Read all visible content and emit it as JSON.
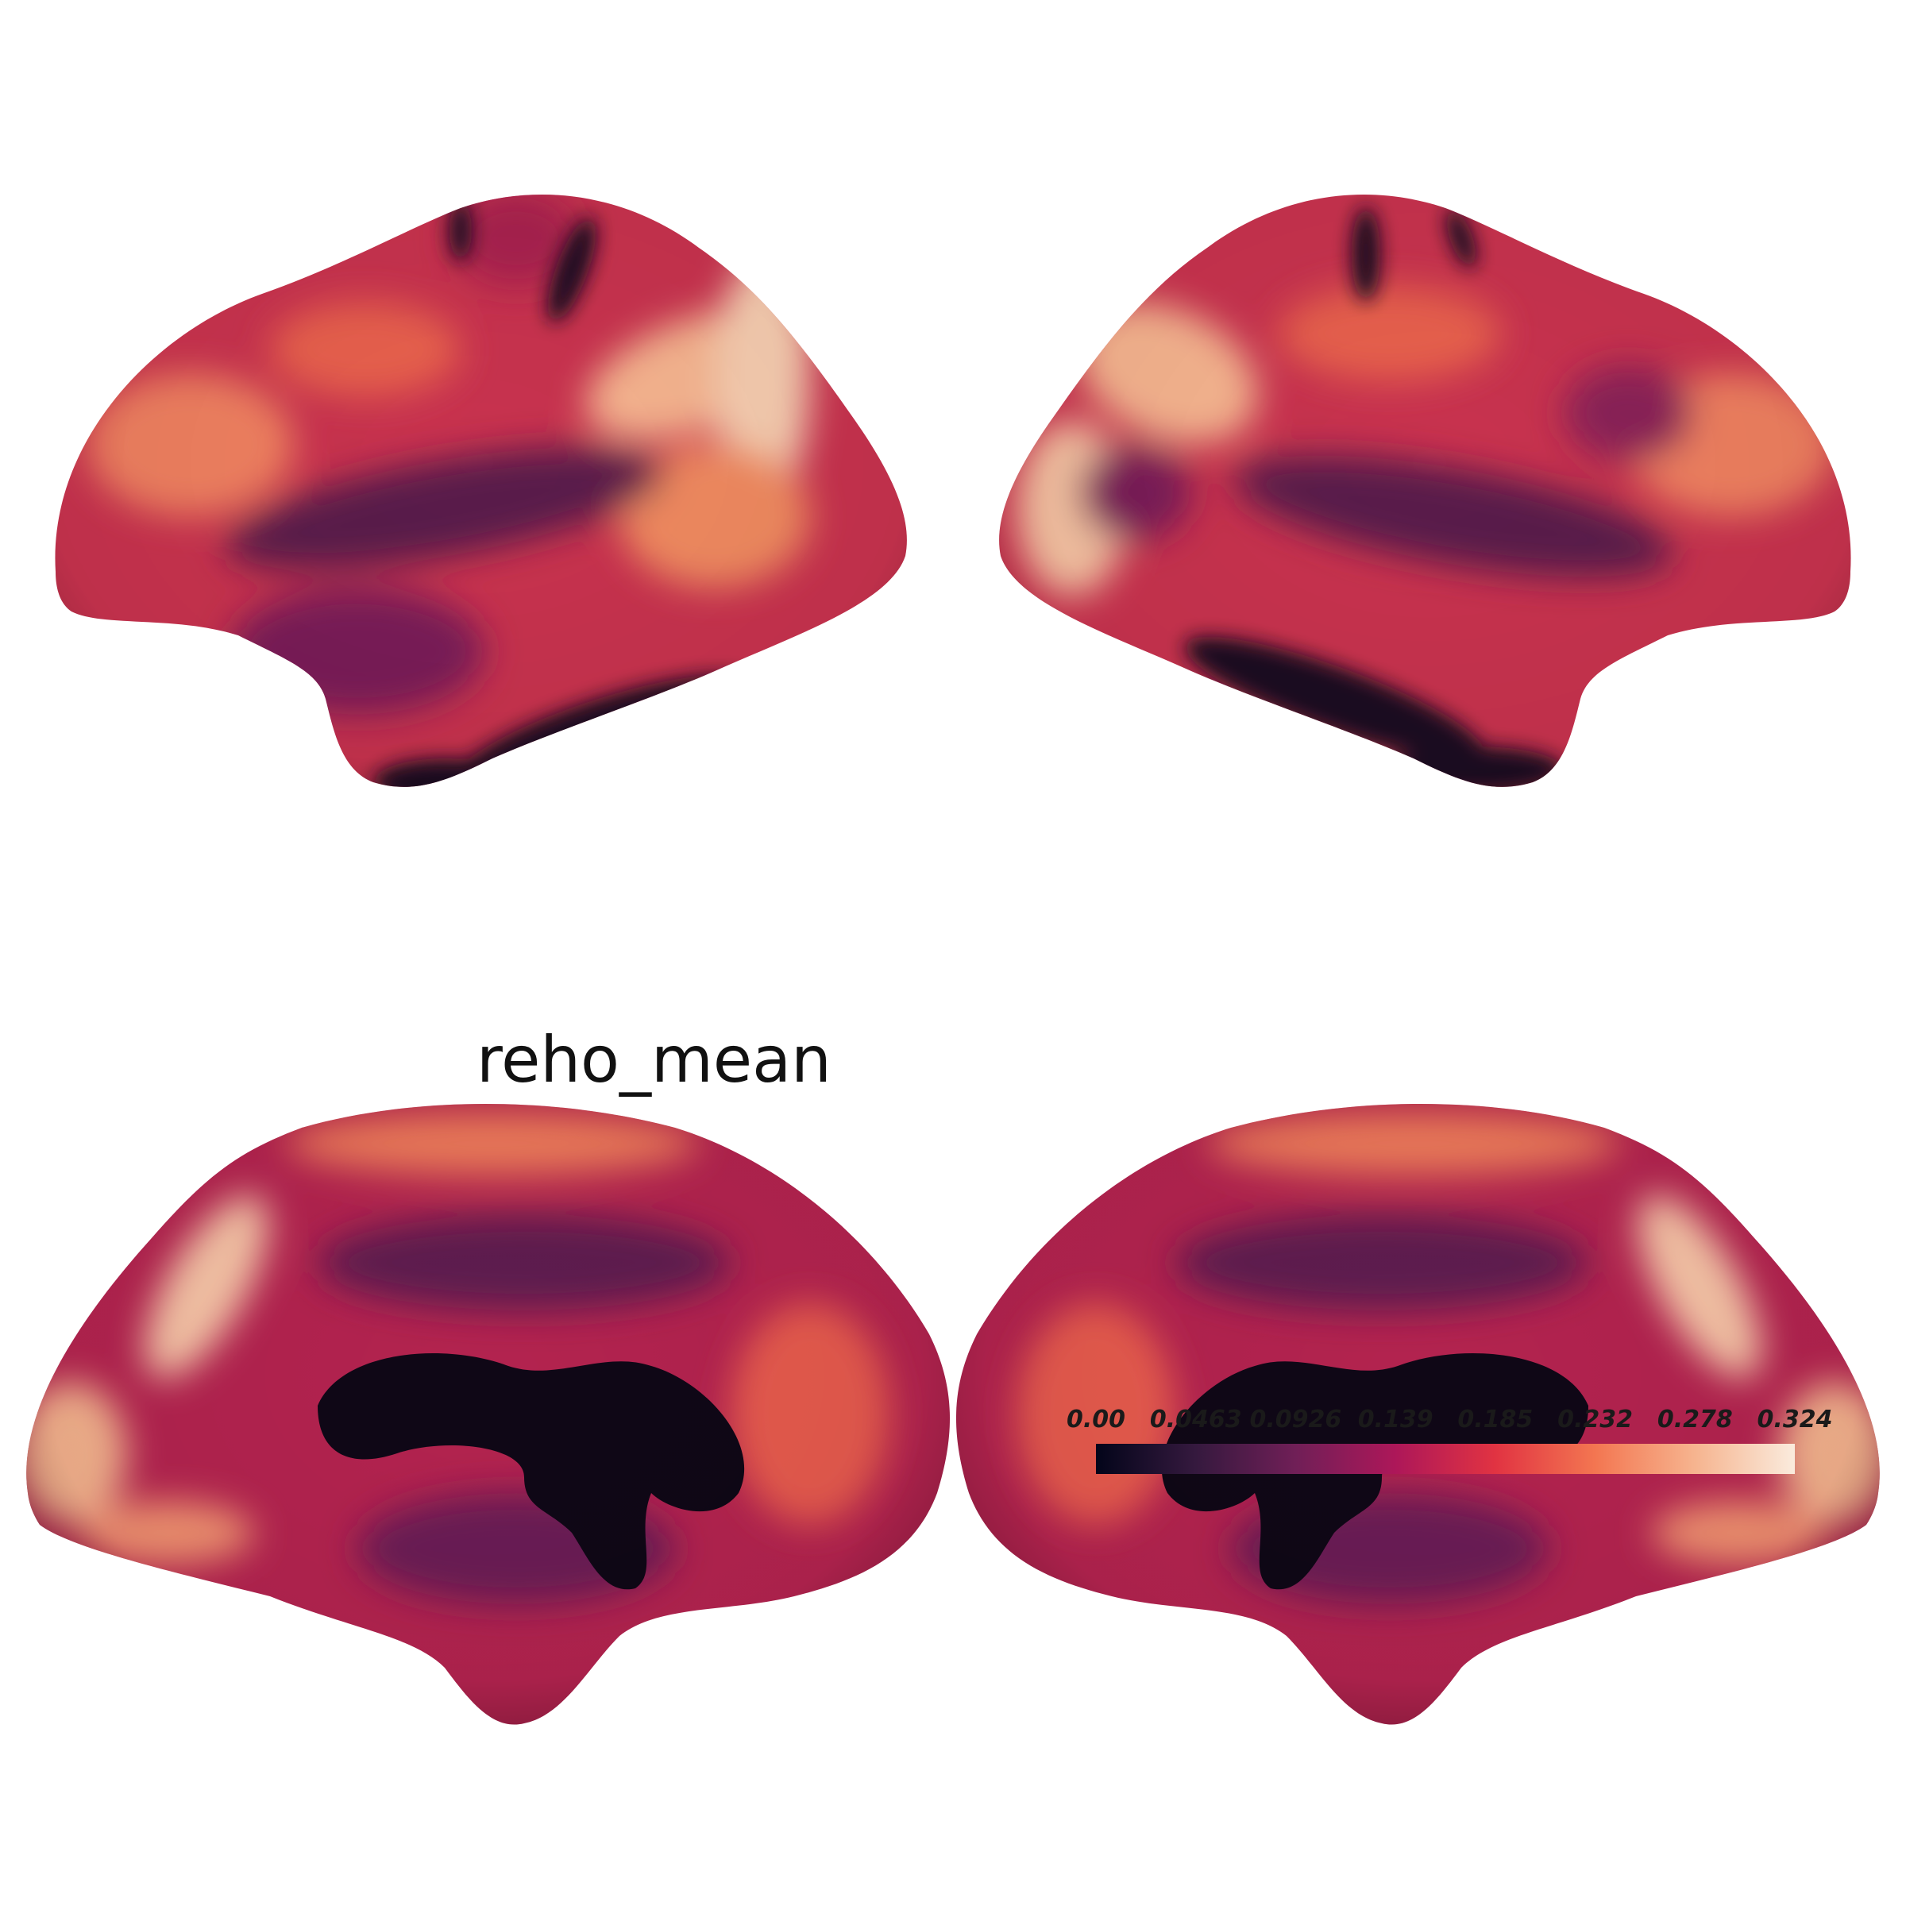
{
  "figure": {
    "title": "reho_mean",
    "views": [
      {
        "name": "left-lateral"
      },
      {
        "name": "right-lateral"
      },
      {
        "name": "left-medial"
      },
      {
        "name": "right-medial"
      }
    ]
  },
  "colorbar": {
    "colormap": "rocket",
    "min": 0.0,
    "max": 0.324,
    "ticks": [
      "0.00",
      "0.0463",
      "0.0926",
      "0.139",
      "0.185",
      "0.232",
      "0.278",
      "0.324"
    ],
    "colors": [
      "#03051a",
      "#35193e",
      "#701f57",
      "#ad1759",
      "#e13342",
      "#f37651",
      "#f6b48f",
      "#faebdd"
    ]
  }
}
